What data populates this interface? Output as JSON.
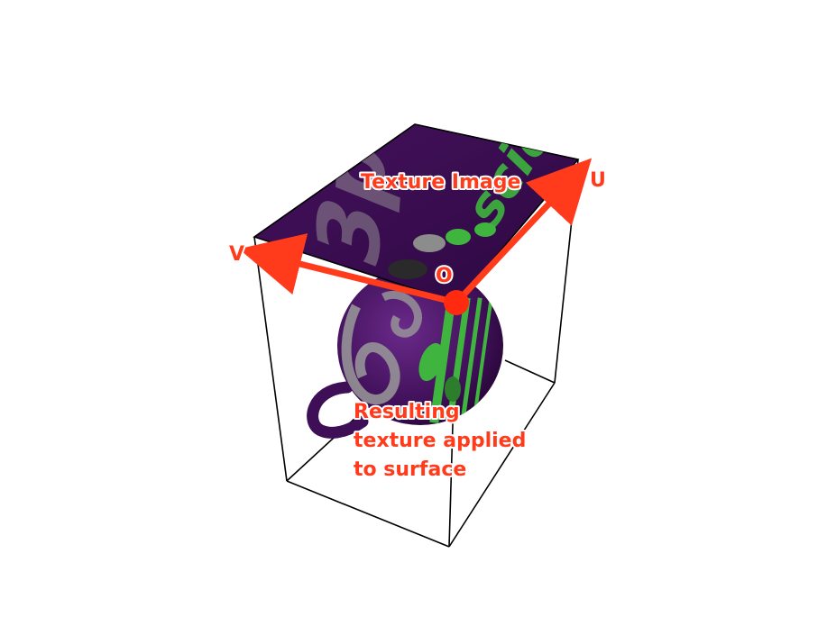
{
  "annotations": {
    "texture_image": "Texture Image",
    "u_axis": "U",
    "v_axis": "V",
    "origin": "O",
    "result_line1": "Resulting",
    "result_line2": "texture applied",
    "result_line3": "to surface"
  },
  "texture_text": {
    "left_word": "3pot",
    "right_word": "science"
  },
  "colors": {
    "annotation": "#ff3b1c",
    "texture_base": "#3b0a4f",
    "texture_green": "#3fb43f",
    "texture_gray": "#8c8c8c",
    "frame": "#000000"
  }
}
